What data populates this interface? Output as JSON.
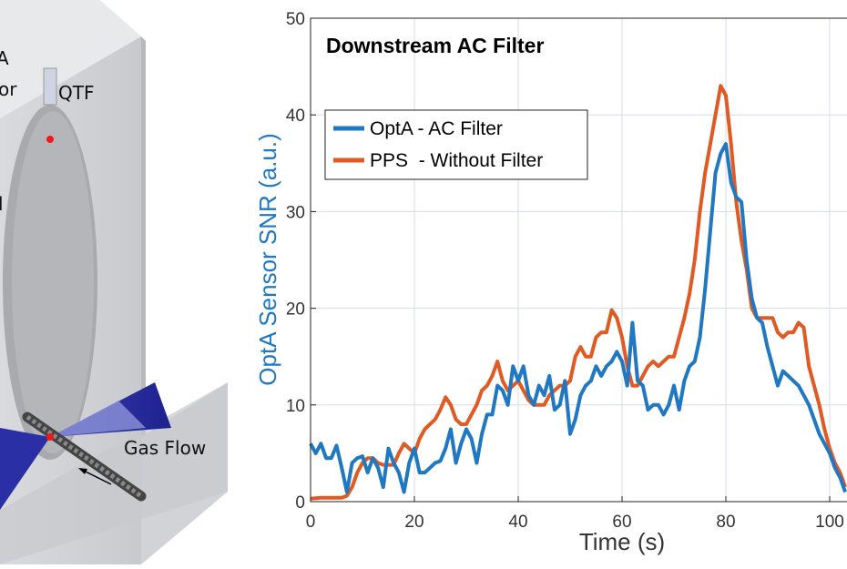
{
  "diagram": {
    "labels": {
      "qtf": "QTF",
      "gas_flow": "Gas Flow",
      "cut_a": "A",
      "cut_or": "or",
      "cut_l": "l"
    }
  },
  "colors": {
    "series1": "#1f78c1",
    "series2": "#e05a24"
  },
  "chart_data": {
    "type": "line",
    "title": "Downstream AC Filter",
    "xlabel": "Time (s)",
    "ylabel": "OptA Sensor SNR (a.u.)",
    "xlim": [
      0,
      103.3
    ],
    "ylim": [
      0,
      50
    ],
    "xticks": [
      0,
      20,
      40,
      60,
      80,
      100
    ],
    "xtick_labels": [
      "0",
      "20",
      "40",
      "60",
      "80",
      "100"
    ],
    "yticks": [
      0,
      10,
      20,
      30,
      40,
      50
    ],
    "ytick_labels": [
      "0",
      "10",
      "20",
      "30",
      "40",
      "50"
    ],
    "grid": true,
    "legend_position": "top-left",
    "series": [
      {
        "name": "OptA - AC Filter",
        "color": "#1f78c1",
        "points": [
          [
            0,
            6
          ],
          [
            1,
            5
          ],
          [
            2,
            6
          ],
          [
            3,
            4.5
          ],
          [
            4,
            4.5
          ],
          [
            5,
            5.8
          ],
          [
            6,
            3.5
          ],
          [
            7,
            1
          ],
          [
            8,
            4
          ],
          [
            9,
            4.5
          ],
          [
            10,
            4.7
          ],
          [
            11,
            3
          ],
          [
            12,
            4.5
          ],
          [
            13,
            3.5
          ],
          [
            14,
            1.5
          ],
          [
            15,
            5.5
          ],
          [
            16,
            4
          ],
          [
            17,
            3
          ],
          [
            18,
            1
          ],
          [
            19,
            4
          ],
          [
            20,
            5.5
          ],
          [
            21,
            3
          ],
          [
            22,
            3
          ],
          [
            23,
            3.5
          ],
          [
            24,
            4
          ],
          [
            25,
            4.2
          ],
          [
            26,
            5.5
          ],
          [
            27,
            7.5
          ],
          [
            28,
            4
          ],
          [
            29,
            6
          ],
          [
            30,
            7.5
          ],
          [
            31,
            6.5
          ],
          [
            32,
            4
          ],
          [
            33,
            7
          ],
          [
            34,
            9
          ],
          [
            35,
            9
          ],
          [
            36,
            12
          ],
          [
            37,
            11.5
          ],
          [
            38,
            10
          ],
          [
            39,
            14
          ],
          [
            40,
            12.5
          ],
          [
            41,
            14
          ],
          [
            42,
            11
          ],
          [
            43,
            10
          ],
          [
            44,
            12
          ],
          [
            45,
            11
          ],
          [
            46,
            13
          ],
          [
            47,
            9.5
          ],
          [
            48,
            10
          ],
          [
            49,
            12.5
          ],
          [
            50,
            7
          ],
          [
            51,
            8.5
          ],
          [
            52,
            11
          ],
          [
            53,
            12
          ],
          [
            54,
            12.5
          ],
          [
            55,
            14
          ],
          [
            56,
            13
          ],
          [
            57,
            14
          ],
          [
            58,
            14.5
          ],
          [
            59,
            15.5
          ],
          [
            60,
            14.5
          ],
          [
            61,
            12
          ],
          [
            62,
            18.5
          ],
          [
            63,
            12.5
          ],
          [
            64,
            12
          ],
          [
            65,
            9.5
          ],
          [
            66,
            10
          ],
          [
            67,
            10
          ],
          [
            68,
            9
          ],
          [
            69,
            10
          ],
          [
            70,
            12
          ],
          [
            71,
            9.5
          ],
          [
            72,
            12.5
          ],
          [
            73,
            14
          ],
          [
            74,
            14.5
          ],
          [
            75,
            17
          ],
          [
            76,
            22
          ],
          [
            77,
            28
          ],
          [
            78,
            34
          ],
          [
            79,
            36
          ],
          [
            80,
            37
          ],
          [
            81,
            33
          ],
          [
            82,
            31.5
          ],
          [
            83,
            31
          ],
          [
            84,
            25
          ],
          [
            85,
            21
          ],
          [
            86,
            19
          ],
          [
            87,
            18.5
          ],
          [
            88,
            16
          ],
          [
            89,
            14
          ],
          [
            90,
            12
          ],
          [
            91,
            13.5
          ],
          [
            92,
            13
          ],
          [
            93,
            12.5
          ],
          [
            94,
            12
          ],
          [
            95,
            11
          ],
          [
            96,
            10
          ],
          [
            97,
            8.5
          ],
          [
            98,
            7
          ],
          [
            99,
            6
          ],
          [
            100,
            5
          ],
          [
            101,
            3.5
          ],
          [
            102,
            2.5
          ],
          [
            103,
            1
          ]
        ]
      },
      {
        "name": "PPS  - Without Filter",
        "color": "#e05a24",
        "points": [
          [
            0,
            0.3
          ],
          [
            2,
            0.4
          ],
          [
            4,
            0.4
          ],
          [
            6,
            0.4
          ],
          [
            7,
            0.6
          ],
          [
            8,
            1.5
          ],
          [
            9,
            3
          ],
          [
            10,
            4
          ],
          [
            11,
            4.5
          ],
          [
            12,
            4.5
          ],
          [
            13,
            4
          ],
          [
            14,
            3.8
          ],
          [
            15,
            3.8
          ],
          [
            16,
            3.8
          ],
          [
            17,
            5
          ],
          [
            18,
            6
          ],
          [
            19,
            5.5
          ],
          [
            20,
            5
          ],
          [
            21,
            6.5
          ],
          [
            22,
            7.5
          ],
          [
            23,
            8
          ],
          [
            24,
            8.5
          ],
          [
            25,
            9.5
          ],
          [
            26,
            10.8
          ],
          [
            27,
            10
          ],
          [
            28,
            8.5
          ],
          [
            29,
            8
          ],
          [
            30,
            8
          ],
          [
            31,
            9
          ],
          [
            32,
            10
          ],
          [
            33,
            11.5
          ],
          [
            34,
            12
          ],
          [
            35,
            13
          ],
          [
            36,
            14.5
          ],
          [
            37,
            12.5
          ],
          [
            38,
            11.5
          ],
          [
            39,
            12
          ],
          [
            40,
            12.5
          ],
          [
            41,
            11.5
          ],
          [
            42,
            10.5
          ],
          [
            43,
            10
          ],
          [
            44,
            10
          ],
          [
            45,
            10
          ],
          [
            46,
            11
          ],
          [
            47,
            11.5
          ],
          [
            48,
            12
          ],
          [
            49,
            12
          ],
          [
            50,
            12.5
          ],
          [
            51,
            15
          ],
          [
            52,
            16
          ],
          [
            53,
            15
          ],
          [
            54,
            15
          ],
          [
            55,
            17
          ],
          [
            56,
            17.5
          ],
          [
            57,
            17.5
          ],
          [
            58,
            19.8
          ],
          [
            59,
            19
          ],
          [
            60,
            17
          ],
          [
            61,
            14
          ],
          [
            62,
            12
          ],
          [
            63,
            12
          ],
          [
            64,
            13
          ],
          [
            65,
            14
          ],
          [
            66,
            14.5
          ],
          [
            67,
            14
          ],
          [
            68,
            14.5
          ],
          [
            69,
            15
          ],
          [
            70,
            15
          ],
          [
            71,
            17
          ],
          [
            72,
            19
          ],
          [
            73,
            21.5
          ],
          [
            74,
            25
          ],
          [
            75,
            30
          ],
          [
            76,
            34
          ],
          [
            77,
            37
          ],
          [
            78,
            40
          ],
          [
            79,
            43
          ],
          [
            80,
            42
          ],
          [
            81,
            37
          ],
          [
            82,
            31
          ],
          [
            83,
            27
          ],
          [
            84,
            24
          ],
          [
            85,
            20
          ],
          [
            86,
            19
          ],
          [
            87,
            19
          ],
          [
            88,
            19
          ],
          [
            89,
            19
          ],
          [
            90,
            17.5
          ],
          [
            91,
            17
          ],
          [
            92,
            17.5
          ],
          [
            93,
            17.5
          ],
          [
            94,
            18.5
          ],
          [
            95,
            18
          ],
          [
            96,
            14
          ],
          [
            97,
            12
          ],
          [
            98,
            10
          ],
          [
            99,
            7.5
          ],
          [
            100,
            5.5
          ],
          [
            101,
            4
          ],
          [
            102,
            3
          ],
          [
            103,
            1.5
          ]
        ]
      }
    ]
  }
}
